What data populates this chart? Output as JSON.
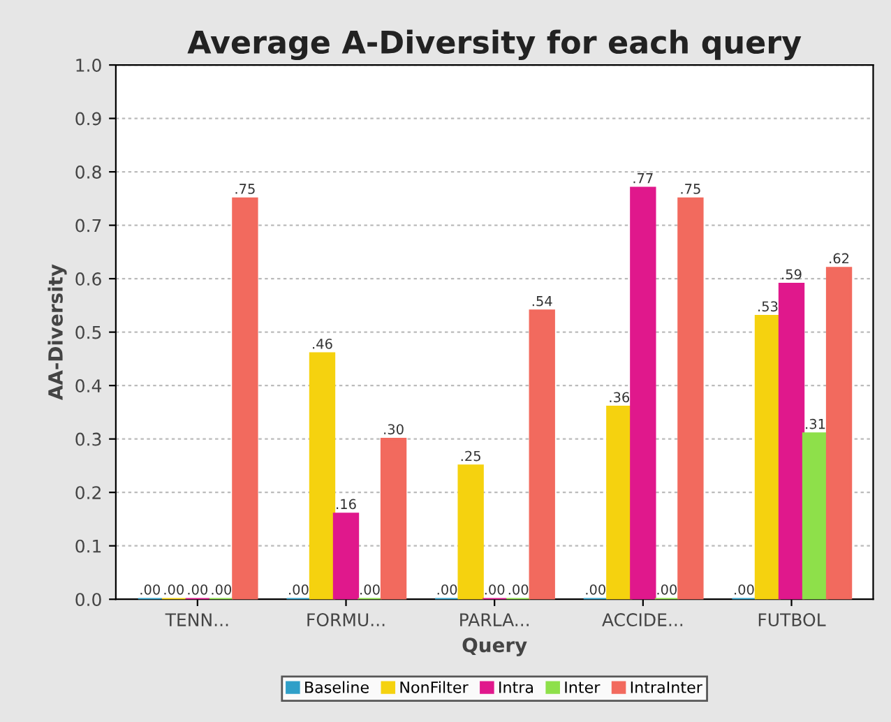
{
  "chart_data": {
    "type": "bar",
    "title": "Average A-Diversity for each query",
    "xlabel": "Query",
    "ylabel": "AA-Diversity",
    "categories": [
      "TENN...",
      "FORMU...",
      "PARLA...",
      "ACCIDE...",
      "FUTBOL"
    ],
    "series": [
      {
        "name": "Baseline",
        "color": "#2f9fc8",
        "values": [
          0,
          0,
          0,
          0,
          0
        ],
        "value_labels": [
          ".00",
          ".00",
          ".00",
          ".00",
          ".00"
        ]
      },
      {
        "name": "NonFilter",
        "color": "#f5d20f",
        "values": [
          0,
          0.46,
          0.25,
          0.36,
          0.53
        ],
        "value_labels": [
          ".00",
          ".46",
          ".25",
          ".36",
          ".53"
        ]
      },
      {
        "name": "Intra",
        "color": "#e0188c",
        "values": [
          0,
          0.16,
          0,
          0.77,
          0.59
        ],
        "value_labels": [
          ".00",
          ".16",
          ".00",
          ".77",
          ".59"
        ]
      },
      {
        "name": "Inter",
        "color": "#8ee04a",
        "values": [
          0,
          0,
          0,
          0,
          0.31
        ],
        "value_labels": [
          ".00",
          ".00",
          ".00",
          ".00",
          ".31"
        ]
      },
      {
        "name": "IntraInter",
        "color": "#f26a5e",
        "values": [
          0.75,
          0.3,
          0.54,
          0.75,
          0.62
        ],
        "value_labels": [
          ".75",
          ".30",
          ".54",
          ".75",
          ".62"
        ]
      }
    ],
    "ylim": [
      0,
      1.0
    ],
    "yticks": [
      "0.0",
      "0.1",
      "0.2",
      "0.3",
      "0.4",
      "0.5",
      "0.6",
      "0.7",
      "0.8",
      "0.9",
      "1.0"
    ],
    "grid": "y",
    "legend": "bottom"
  }
}
